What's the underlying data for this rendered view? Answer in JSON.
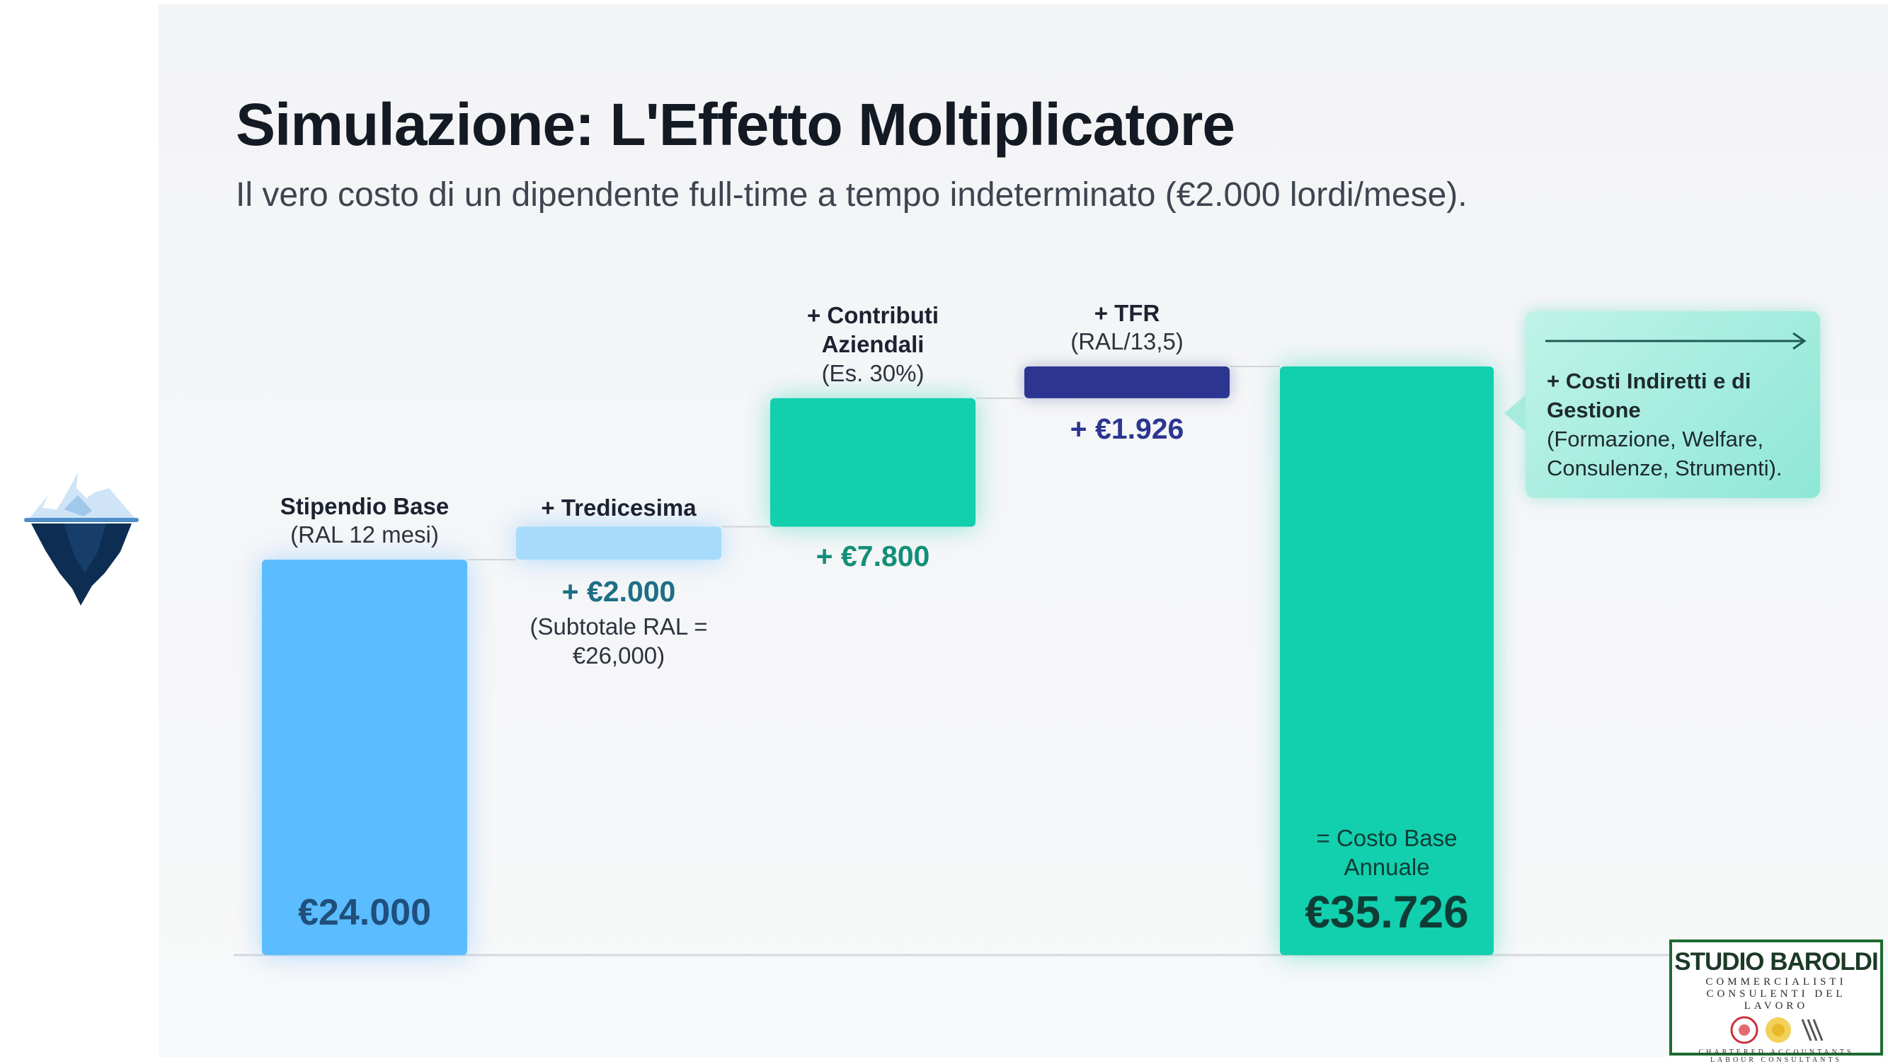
{
  "header": {
    "title": "Simulazione: L'Effetto Moltiplicatore",
    "subtitle": "Il vero costo di un dipendente full-time a tempo indeterminato (€2.000 lordi/mese)."
  },
  "chart_data": {
    "type": "waterfall",
    "categories": [
      "Stipendio Base",
      "+ Tredicesima",
      "+ Contributi Aziendali",
      "+ TFR",
      "= Costo Base Annuale"
    ],
    "values": [
      24000,
      2000,
      7800,
      1926,
      35726
    ],
    "cumulative_end": [
      24000,
      26000,
      33800,
      35726,
      35726
    ],
    "measure": [
      "absolute",
      "relative",
      "relative",
      "relative",
      "total"
    ],
    "ylim": [
      0,
      35726
    ],
    "grid": false,
    "colors": [
      "#5bbcff",
      "#a8dbfb",
      "#12cfae",
      "#2c3590",
      "#12cfae"
    ],
    "labels": {
      "bar1_title": "Stipendio Base",
      "bar1_note": "(RAL 12 mesi)",
      "bar1_value": "€24.000",
      "bar2_title": "+ Tredicesima",
      "bar2_value": "+ €2.000",
      "bar2_note_line1": "(Subtotale RAL =",
      "bar2_note_line2": "€26,000)",
      "bar3_title_line1": "+ Contributi",
      "bar3_title_line2": "Aziendali",
      "bar3_note": "(Es. 30%)",
      "bar3_value": "+ €7.800",
      "bar4_title": "+ TFR",
      "bar4_note": "(RAL/13,5)",
      "bar4_value": "+ €1.926",
      "bar5_title_line1": "= Costo Base",
      "bar5_title_line2": "Annuale",
      "bar5_value": "€35.726"
    },
    "value_colors": {
      "bar1": "#1f4f7a",
      "bar2": "#1d6f86",
      "bar3": "#138f78",
      "bar4": "#2c3590",
      "bar5": "#0f3d36"
    }
  },
  "callout": {
    "title": "+ Costi Indiretti e di Gestione",
    "body": "(Formazione, Welfare, Consulenze, Strumenti)."
  },
  "logo": {
    "name": "STUDIO BAROLDI",
    "line1": "COMMERCIALISTI",
    "line2": "CONSULENTI DEL LAVORO",
    "line3": "CHARTERED ACCOUNTANTS",
    "line4": "LABOUR CONSULTANTS"
  },
  "icons": {
    "iceberg": "iceberg-icon",
    "arrow": "arrow-right-icon",
    "emblems": "professional-emblems-icon"
  }
}
